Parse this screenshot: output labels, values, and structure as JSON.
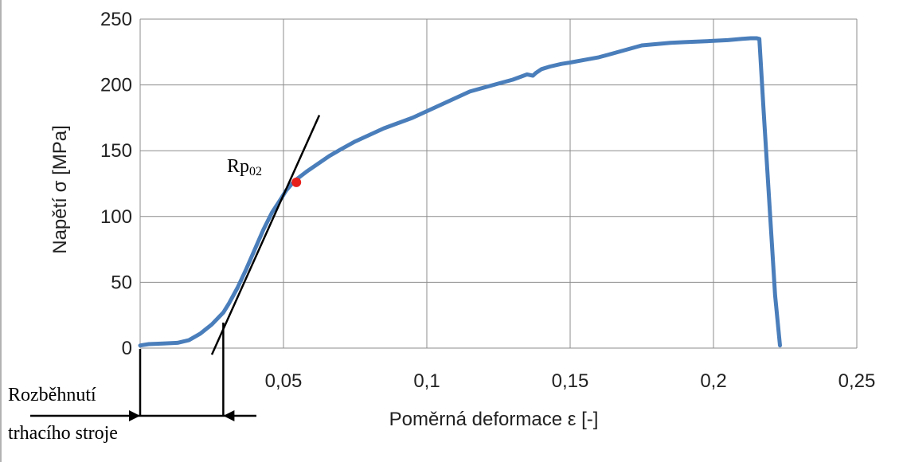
{
  "chart_data": {
    "type": "line",
    "xlabel": "Poměrná deformace ε [-]",
    "ylabel": "Napětí σ [MPa]",
    "xlim": [
      0,
      0.25
    ],
    "ylim": [
      0,
      250
    ],
    "x_ticks": [
      0.05,
      0.1,
      0.15,
      0.2,
      0.25
    ],
    "x_tick_labels": [
      "0,05",
      "0,1",
      "0,15",
      "0,2",
      "0,25"
    ],
    "y_ticks": [
      0,
      50,
      100,
      150,
      200,
      250
    ],
    "y_tick_labels": [
      "0",
      "50",
      "100",
      "150",
      "200",
      "250"
    ],
    "grid": true,
    "series": [
      {
        "color": "#4a7ebb",
        "x": [
          0.0,
          0.003,
          0.008,
          0.013,
          0.017,
          0.021,
          0.025,
          0.029,
          0.031,
          0.034,
          0.037,
          0.04,
          0.043,
          0.046,
          0.049,
          0.051,
          0.053,
          0.055,
          0.058,
          0.062,
          0.066,
          0.07,
          0.075,
          0.08,
          0.085,
          0.09,
          0.095,
          0.1,
          0.105,
          0.11,
          0.115,
          0.12,
          0.125,
          0.13,
          0.135,
          0.137,
          0.138,
          0.14,
          0.143,
          0.147,
          0.15,
          0.155,
          0.16,
          0.165,
          0.17,
          0.175,
          0.18,
          0.185,
          0.19,
          0.195,
          0.2,
          0.205,
          0.21,
          0.213,
          0.215,
          0.216,
          0.2175,
          0.2195,
          0.2215,
          0.2232
        ],
        "y": [
          2,
          3,
          3.5,
          4,
          6,
          11,
          18,
          27,
          34,
          46,
          60,
          75,
          90,
          103,
          113,
          120,
          125,
          129,
          134,
          140,
          146,
          151,
          157,
          162,
          167,
          171,
          175,
          180,
          185,
          190,
          195,
          198,
          201,
          204,
          208,
          207,
          209,
          212,
          214,
          216,
          217,
          219,
          221,
          224,
          227,
          230,
          231,
          232,
          232.5,
          233,
          233.5,
          234,
          235,
          235.5,
          235.5,
          235,
          180,
          110,
          40,
          2
        ]
      }
    ],
    "tangent_line": {
      "x": [
        0.025,
        0.0625
      ],
      "y": [
        -5,
        177
      ],
      "color": "#000000"
    },
    "point": {
      "label_main": "Rp",
      "label_sub": "02",
      "x": 0.0545,
      "y": 126,
      "color": "#e8201c"
    },
    "annotation": {
      "line1": "Rozběhnutí",
      "line2": "trhacího stroje",
      "x_start": 0.0,
      "x_end": 0.029
    }
  }
}
